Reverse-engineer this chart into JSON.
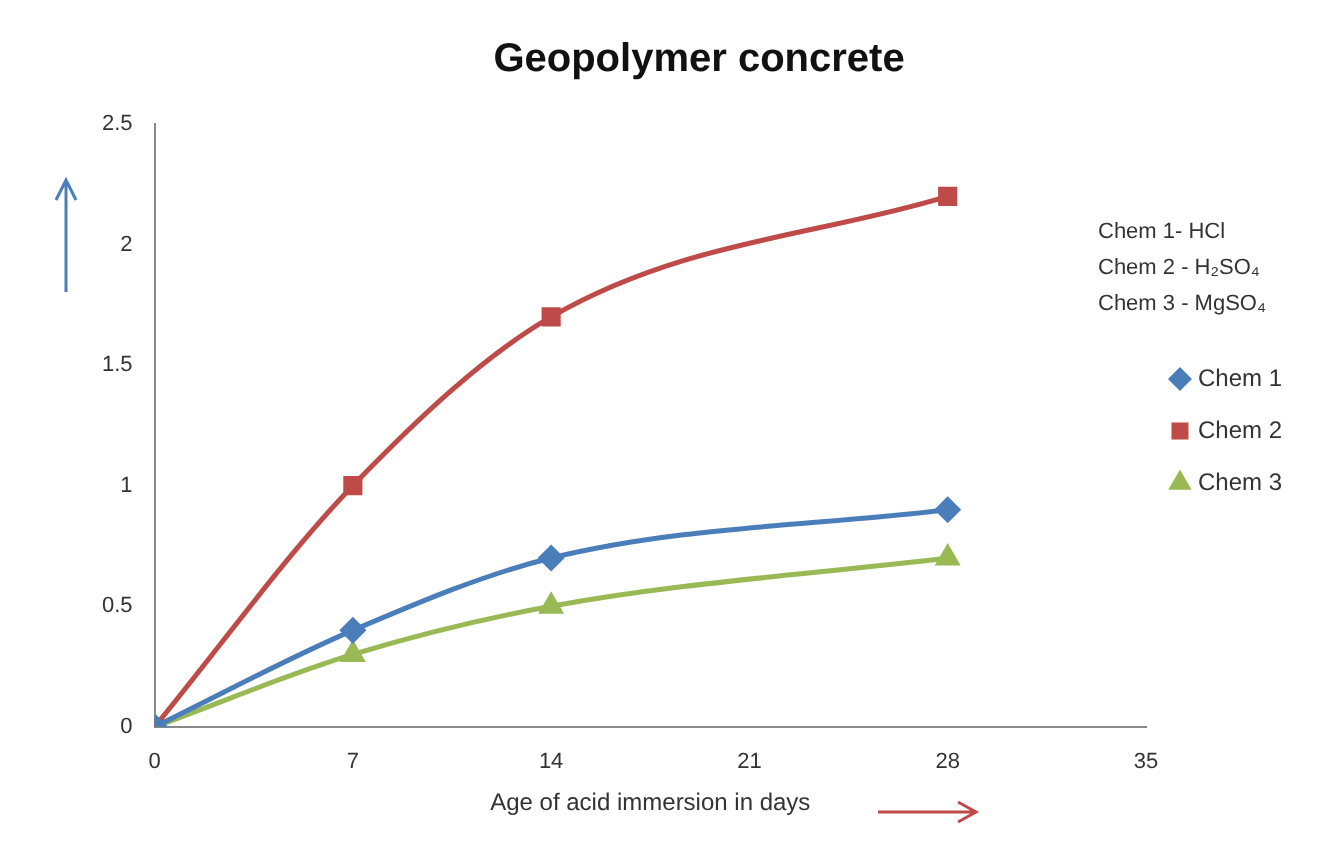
{
  "chart_data": {
    "type": "line",
    "title": "Geopolymer concrete",
    "xlabel": "Age of acid immersion in days",
    "x": [
      0,
      7,
      14,
      28
    ],
    "series": [
      {
        "name": "Chem 1",
        "color": "#4a7ebb",
        "marker": "diamond",
        "values": [
          0,
          0.4,
          0.7,
          0.9
        ]
      },
      {
        "name": "Chem 2",
        "color": "#be4b48",
        "marker": "square",
        "values": [
          0,
          1,
          1.7,
          2.2
        ]
      },
      {
        "name": "Chem 3",
        "color": "#98b954",
        "marker": "triangle",
        "values": [
          0,
          0.3,
          0.5,
          0.7
        ]
      }
    ],
    "xlim": [
      0,
      35
    ],
    "xticks": [
      0,
      7,
      14,
      21,
      28,
      35
    ],
    "ylim": [
      0,
      2.5
    ],
    "yticks": [
      0,
      0.5,
      1,
      1.5,
      2,
      2.5
    ],
    "grid": false,
    "legend": "right",
    "annotations": [
      "Chem 1- HCl",
      "Chem 2 - H₂SO₄",
      "Chem 3 - MgSO₄"
    ]
  }
}
